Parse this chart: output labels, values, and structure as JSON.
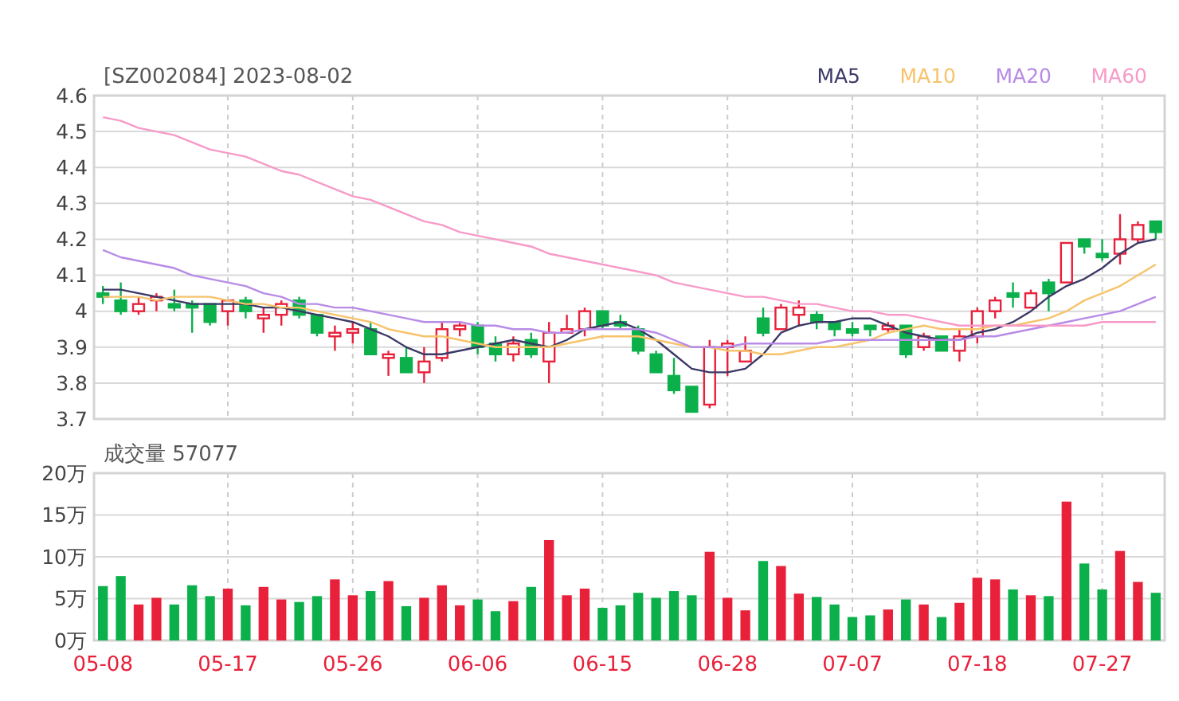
{
  "chart_data": [
    {
      "type": "candlestick",
      "title": "[SZ002084] 2023-08-02",
      "categories": [
        null,
        null,
        null,
        null,
        null,
        null,
        null,
        null,
        null,
        null,
        null,
        null,
        null,
        null,
        null,
        null,
        null,
        null,
        null,
        null,
        null,
        null,
        null,
        null,
        null,
        null,
        null,
        null,
        null,
        null,
        null,
        null,
        null,
        null,
        null,
        null,
        null,
        null,
        null,
        null,
        null,
        null,
        null,
        null,
        null,
        null,
        null,
        null,
        null,
        null,
        null,
        null,
        null,
        null,
        null,
        null,
        null,
        null,
        null,
        null
      ],
      "ohlc": [
        [
          4.05,
          4.07,
          4.02,
          4.04
        ],
        [
          4.03,
          4.08,
          3.99,
          4.0
        ],
        [
          4.0,
          4.04,
          3.99,
          4.02
        ],
        [
          4.03,
          4.05,
          4.0,
          4.04
        ],
        [
          4.02,
          4.06,
          4.0,
          4.01
        ],
        [
          4.02,
          4.03,
          3.94,
          4.01
        ],
        [
          4.02,
          4.02,
          3.96,
          3.97
        ],
        [
          4.0,
          4.03,
          3.96,
          4.03
        ],
        [
          4.03,
          4.04,
          3.98,
          4.0
        ],
        [
          3.98,
          4.01,
          3.94,
          3.99
        ],
        [
          3.99,
          4.03,
          3.96,
          4.02
        ],
        [
          4.03,
          4.04,
          3.98,
          3.99
        ],
        [
          3.99,
          3.99,
          3.93,
          3.94
        ],
        [
          3.93,
          3.96,
          3.89,
          3.94
        ],
        [
          3.94,
          3.97,
          3.91,
          3.95
        ],
        [
          3.95,
          3.97,
          3.88,
          3.88
        ],
        [
          3.87,
          3.89,
          3.82,
          3.88
        ],
        [
          3.87,
          3.9,
          3.83,
          3.83
        ],
        [
          3.83,
          3.9,
          3.8,
          3.86
        ],
        [
          3.87,
          3.97,
          3.86,
          3.95
        ],
        [
          3.95,
          3.97,
          3.93,
          3.96
        ],
        [
          3.96,
          3.97,
          3.88,
          3.9
        ],
        [
          3.91,
          3.93,
          3.86,
          3.88
        ],
        [
          3.88,
          3.93,
          3.86,
          3.91
        ],
        [
          3.92,
          3.94,
          3.87,
          3.88
        ],
        [
          3.86,
          3.97,
          3.8,
          3.94
        ],
        [
          3.94,
          3.99,
          3.94,
          3.95
        ],
        [
          3.95,
          4.01,
          3.93,
          4.0
        ],
        [
          4.0,
          4.0,
          3.95,
          3.96
        ],
        [
          3.97,
          3.99,
          3.95,
          3.96
        ],
        [
          3.95,
          3.96,
          3.88,
          3.89
        ],
        [
          3.88,
          3.89,
          3.83,
          3.83
        ],
        [
          3.82,
          3.87,
          3.77,
          3.78
        ],
        [
          3.79,
          3.79,
          3.72,
          3.72
        ],
        [
          3.74,
          3.92,
          3.73,
          3.9
        ],
        [
          3.9,
          3.92,
          3.82,
          3.91
        ],
        [
          3.86,
          3.93,
          3.86,
          3.89
        ],
        [
          3.98,
          4.01,
          3.93,
          3.94
        ],
        [
          3.95,
          4.02,
          3.95,
          4.01
        ],
        [
          3.99,
          4.03,
          3.96,
          4.01
        ],
        [
          3.99,
          4.0,
          3.95,
          3.97
        ],
        [
          3.97,
          3.97,
          3.93,
          3.95
        ],
        [
          3.95,
          3.97,
          3.93,
          3.94
        ],
        [
          3.96,
          3.96,
          3.93,
          3.95
        ],
        [
          3.95,
          3.97,
          3.94,
          3.96
        ],
        [
          3.96,
          3.96,
          3.87,
          3.88
        ],
        [
          3.9,
          3.94,
          3.89,
          3.93
        ],
        [
          3.93,
          3.93,
          3.89,
          3.89
        ],
        [
          3.89,
          3.95,
          3.86,
          3.93
        ],
        [
          3.93,
          4.01,
          3.91,
          4.0
        ],
        [
          4.0,
          4.04,
          3.98,
          4.03
        ],
        [
          4.05,
          4.08,
          4.01,
          4.04
        ],
        [
          4.01,
          4.06,
          4.01,
          4.05
        ],
        [
          4.08,
          4.09,
          4.0,
          4.05
        ],
        [
          4.08,
          4.19,
          4.08,
          4.19
        ],
        [
          4.2,
          4.2,
          4.16,
          4.18
        ],
        [
          4.16,
          4.2,
          4.14,
          4.15
        ],
        [
          4.16,
          4.27,
          4.13,
          4.2
        ],
        [
          4.2,
          4.25,
          4.19,
          4.24
        ],
        [
          4.25,
          4.25,
          4.2,
          4.22
        ]
      ],
      "colors": [
        "#0bb04b",
        "#0bb04b",
        "#e8203a",
        "#e8203a",
        "#0bb04b",
        "#0bb04b",
        "#0bb04b",
        "#e8203a",
        "#0bb04b",
        "#e8203a",
        "#e8203a",
        "#0bb04b",
        "#0bb04b",
        "#e8203a",
        "#e8203a",
        "#0bb04b",
        "#e8203a",
        "#0bb04b",
        "#e8203a",
        "#e8203a",
        "#e8203a",
        "#0bb04b",
        "#0bb04b",
        "#e8203a",
        "#0bb04b",
        "#e8203a",
        "#e8203a",
        "#e8203a",
        "#0bb04b",
        "#0bb04b",
        "#0bb04b",
        "#0bb04b",
        "#0bb04b",
        "#0bb04b",
        "#e8203a",
        "#e8203a",
        "#e8203a",
        "#0bb04b",
        "#e8203a",
        "#e8203a",
        "#0bb04b",
        "#0bb04b",
        "#0bb04b",
        "#0bb04b",
        "#e8203a",
        "#0bb04b",
        "#e8203a",
        "#0bb04b",
        "#e8203a",
        "#e8203a",
        "#e8203a",
        "#0bb04b",
        "#e8203a",
        "#0bb04b",
        "#e8203a",
        "#0bb04b",
        "#0bb04b",
        "#e8203a",
        "#e8203a",
        "#0bb04b"
      ],
      "series": [
        {
          "type": "line",
          "name": "MA5",
          "color": "#3b3966",
          "values": [
            4.06,
            4.06,
            4.05,
            4.04,
            4.03,
            4.02,
            4.02,
            4.02,
            4.02,
            4.01,
            4.01,
            4.0,
            3.99,
            3.98,
            3.97,
            3.95,
            3.93,
            3.9,
            3.88,
            3.88,
            3.89,
            3.9,
            3.91,
            3.92,
            3.91,
            3.9,
            3.92,
            3.95,
            3.96,
            3.97,
            3.95,
            3.92,
            3.88,
            3.84,
            3.83,
            3.83,
            3.84,
            3.88,
            3.94,
            3.96,
            3.97,
            3.97,
            3.98,
            3.98,
            3.96,
            3.94,
            3.93,
            3.92,
            3.92,
            3.94,
            3.95,
            3.97,
            4.0,
            4.04,
            4.07,
            4.09,
            4.12,
            4.16,
            4.19,
            4.2
          ]
        },
        {
          "type": "line",
          "name": "MA10",
          "color": "#f7c36b",
          "values": [
            4.04,
            4.04,
            4.04,
            4.03,
            4.04,
            4.04,
            4.04,
            4.03,
            4.02,
            4.02,
            4.01,
            4.01,
            4.0,
            3.99,
            3.98,
            3.97,
            3.95,
            3.94,
            3.93,
            3.93,
            3.92,
            3.91,
            3.9,
            3.9,
            3.9,
            3.9,
            3.91,
            3.92,
            3.93,
            3.93,
            3.93,
            3.92,
            3.91,
            3.9,
            3.9,
            3.89,
            3.89,
            3.88,
            3.88,
            3.89,
            3.9,
            3.9,
            3.91,
            3.92,
            3.94,
            3.95,
            3.96,
            3.95,
            3.95,
            3.95,
            3.96,
            3.96,
            3.97,
            3.98,
            4.0,
            4.03,
            4.05,
            4.07,
            4.1,
            4.13
          ]
        },
        {
          "type": "line",
          "name": "MA20",
          "color": "#b88be6",
          "values": [
            4.17,
            4.15,
            4.14,
            4.13,
            4.12,
            4.1,
            4.09,
            4.08,
            4.07,
            4.05,
            4.04,
            4.02,
            4.02,
            4.01,
            4.01,
            4.0,
            3.99,
            3.98,
            3.97,
            3.97,
            3.97,
            3.96,
            3.96,
            3.95,
            3.95,
            3.94,
            3.94,
            3.95,
            3.95,
            3.95,
            3.95,
            3.94,
            3.92,
            3.9,
            3.9,
            3.9,
            3.91,
            3.91,
            3.91,
            3.91,
            3.91,
            3.92,
            3.92,
            3.92,
            3.92,
            3.92,
            3.92,
            3.92,
            3.92,
            3.93,
            3.93,
            3.94,
            3.95,
            3.96,
            3.97,
            3.98,
            3.99,
            4.0,
            4.02,
            4.04
          ]
        },
        {
          "type": "line",
          "name": "MA60",
          "color": "#f79ac8",
          "values": [
            4.54,
            4.53,
            4.51,
            4.5,
            4.49,
            4.47,
            4.45,
            4.44,
            4.43,
            4.41,
            4.39,
            4.38,
            4.36,
            4.34,
            4.32,
            4.31,
            4.29,
            4.27,
            4.25,
            4.24,
            4.22,
            4.21,
            4.2,
            4.19,
            4.18,
            4.16,
            4.15,
            4.14,
            4.13,
            4.12,
            4.11,
            4.1,
            4.08,
            4.07,
            4.06,
            4.05,
            4.04,
            4.04,
            4.03,
            4.02,
            4.02,
            4.01,
            4.0,
            4.0,
            3.99,
            3.99,
            3.98,
            3.97,
            3.96,
            3.96,
            3.96,
            3.96,
            3.96,
            3.96,
            3.96,
            3.96,
            3.97,
            3.97,
            3.97,
            3.97
          ]
        }
      ],
      "ylim": [
        3.7,
        4.6
      ],
      "yticks": [
        3.7,
        3.8,
        3.9,
        4,
        4.1,
        4.2,
        4.3,
        4.4,
        4.5,
        4.6
      ],
      "grid": true,
      "legend": "top right",
      "tick_labels": "y"
    },
    {
      "type": "bar",
      "title": "成交量 57077",
      "categories": [
        "05-08",
        null,
        null,
        null,
        null,
        null,
        null,
        "05-17",
        null,
        null,
        null,
        null,
        null,
        null,
        "05-26",
        null,
        null,
        null,
        null,
        null,
        null,
        "06-06",
        null,
        null,
        null,
        null,
        null,
        null,
        "06-15",
        null,
        null,
        null,
        null,
        null,
        null,
        "06-28",
        null,
        null,
        null,
        null,
        null,
        null,
        "07-07",
        null,
        null,
        null,
        null,
        null,
        null,
        "07-18",
        null,
        null,
        null,
        null,
        null,
        null,
        "07-27",
        null,
        null,
        null
      ],
      "values": [
        6.5,
        7.7,
        4.3,
        5.1,
        4.3,
        6.6,
        5.3,
        6.2,
        4.2,
        6.4,
        4.9,
        4.6,
        5.3,
        7.3,
        5.4,
        5.9,
        7.1,
        4.1,
        5.1,
        6.6,
        4.2,
        4.9,
        3.5,
        4.7,
        6.4,
        12.0,
        5.4,
        6.2,
        3.9,
        4.2,
        5.7,
        5.1,
        5.9,
        5.4,
        10.6,
        5.1,
        3.6,
        9.5,
        8.9,
        5.6,
        5.2,
        4.3,
        2.8,
        3.0,
        3.7,
        4.9,
        4.3,
        2.8,
        4.5,
        7.5,
        7.3,
        6.1,
        5.4,
        5.3,
        16.6,
        9.2,
        6.1,
        10.7,
        7.0,
        5.7
      ],
      "colors": [
        "#0bb04b",
        "#0bb04b",
        "#e8203a",
        "#e8203a",
        "#0bb04b",
        "#0bb04b",
        "#0bb04b",
        "#e8203a",
        "#0bb04b",
        "#e8203a",
        "#e8203a",
        "#0bb04b",
        "#0bb04b",
        "#e8203a",
        "#e8203a",
        "#0bb04b",
        "#e8203a",
        "#0bb04b",
        "#e8203a",
        "#e8203a",
        "#e8203a",
        "#0bb04b",
        "#0bb04b",
        "#e8203a",
        "#0bb04b",
        "#e8203a",
        "#e8203a",
        "#e8203a",
        "#0bb04b",
        "#0bb04b",
        "#0bb04b",
        "#0bb04b",
        "#0bb04b",
        "#0bb04b",
        "#e8203a",
        "#e8203a",
        "#e8203a",
        "#0bb04b",
        "#e8203a",
        "#e8203a",
        "#0bb04b",
        "#0bb04b",
        "#0bb04b",
        "#0bb04b",
        "#e8203a",
        "#0bb04b",
        "#e8203a",
        "#0bb04b",
        "#e8203a",
        "#e8203a",
        "#e8203a",
        "#0bb04b",
        "#e8203a",
        "#0bb04b",
        "#e8203a",
        "#0bb04b",
        "#0bb04b",
        "#e8203a",
        "#e8203a",
        "#0bb04b"
      ],
      "ylim": [
        0,
        20
      ],
      "yticks": [
        {
          "value": 0,
          "label": "0万"
        },
        {
          "value": 5,
          "label": "5万"
        },
        {
          "value": 10,
          "label": "10万"
        },
        {
          "value": 15,
          "label": "15万"
        },
        {
          "value": 20,
          "label": "20万"
        }
      ],
      "grid": true
    }
  ]
}
